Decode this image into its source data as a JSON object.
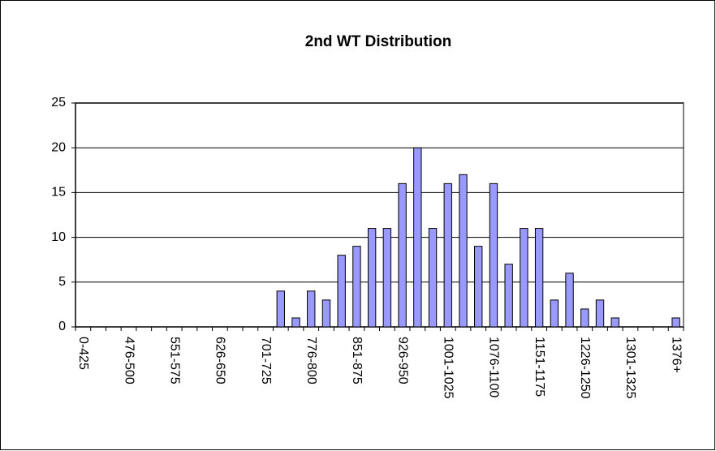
{
  "chart_data": {
    "type": "bar",
    "title": "2nd WT Distribution",
    "categories": [
      "0-425",
      null,
      null,
      "476-500",
      null,
      null,
      "551-575",
      null,
      null,
      "626-650",
      null,
      null,
      "701-725",
      null,
      null,
      "776-800",
      null,
      null,
      "851-875",
      null,
      null,
      "926-950",
      null,
      null,
      "1001-1025",
      null,
      null,
      "1076-1100",
      null,
      null,
      "1151-1175",
      null,
      null,
      "1226-1250",
      null,
      null,
      "1301-1325",
      null,
      null,
      "1376+"
    ],
    "values": [
      0,
      0,
      0,
      0,
      0,
      0,
      0,
      0,
      0,
      0,
      0,
      0,
      0,
      4,
      1,
      4,
      3,
      8,
      9,
      11,
      11,
      16,
      20,
      11,
      16,
      17,
      9,
      16,
      7,
      11,
      11,
      3,
      6,
      2,
      3,
      1,
      0,
      0,
      0,
      1
    ],
    "color": "#9999ff",
    "ylim": [
      0,
      25
    ],
    "yticks": [
      0,
      5,
      10,
      15,
      20,
      25
    ],
    "grid": true
  }
}
